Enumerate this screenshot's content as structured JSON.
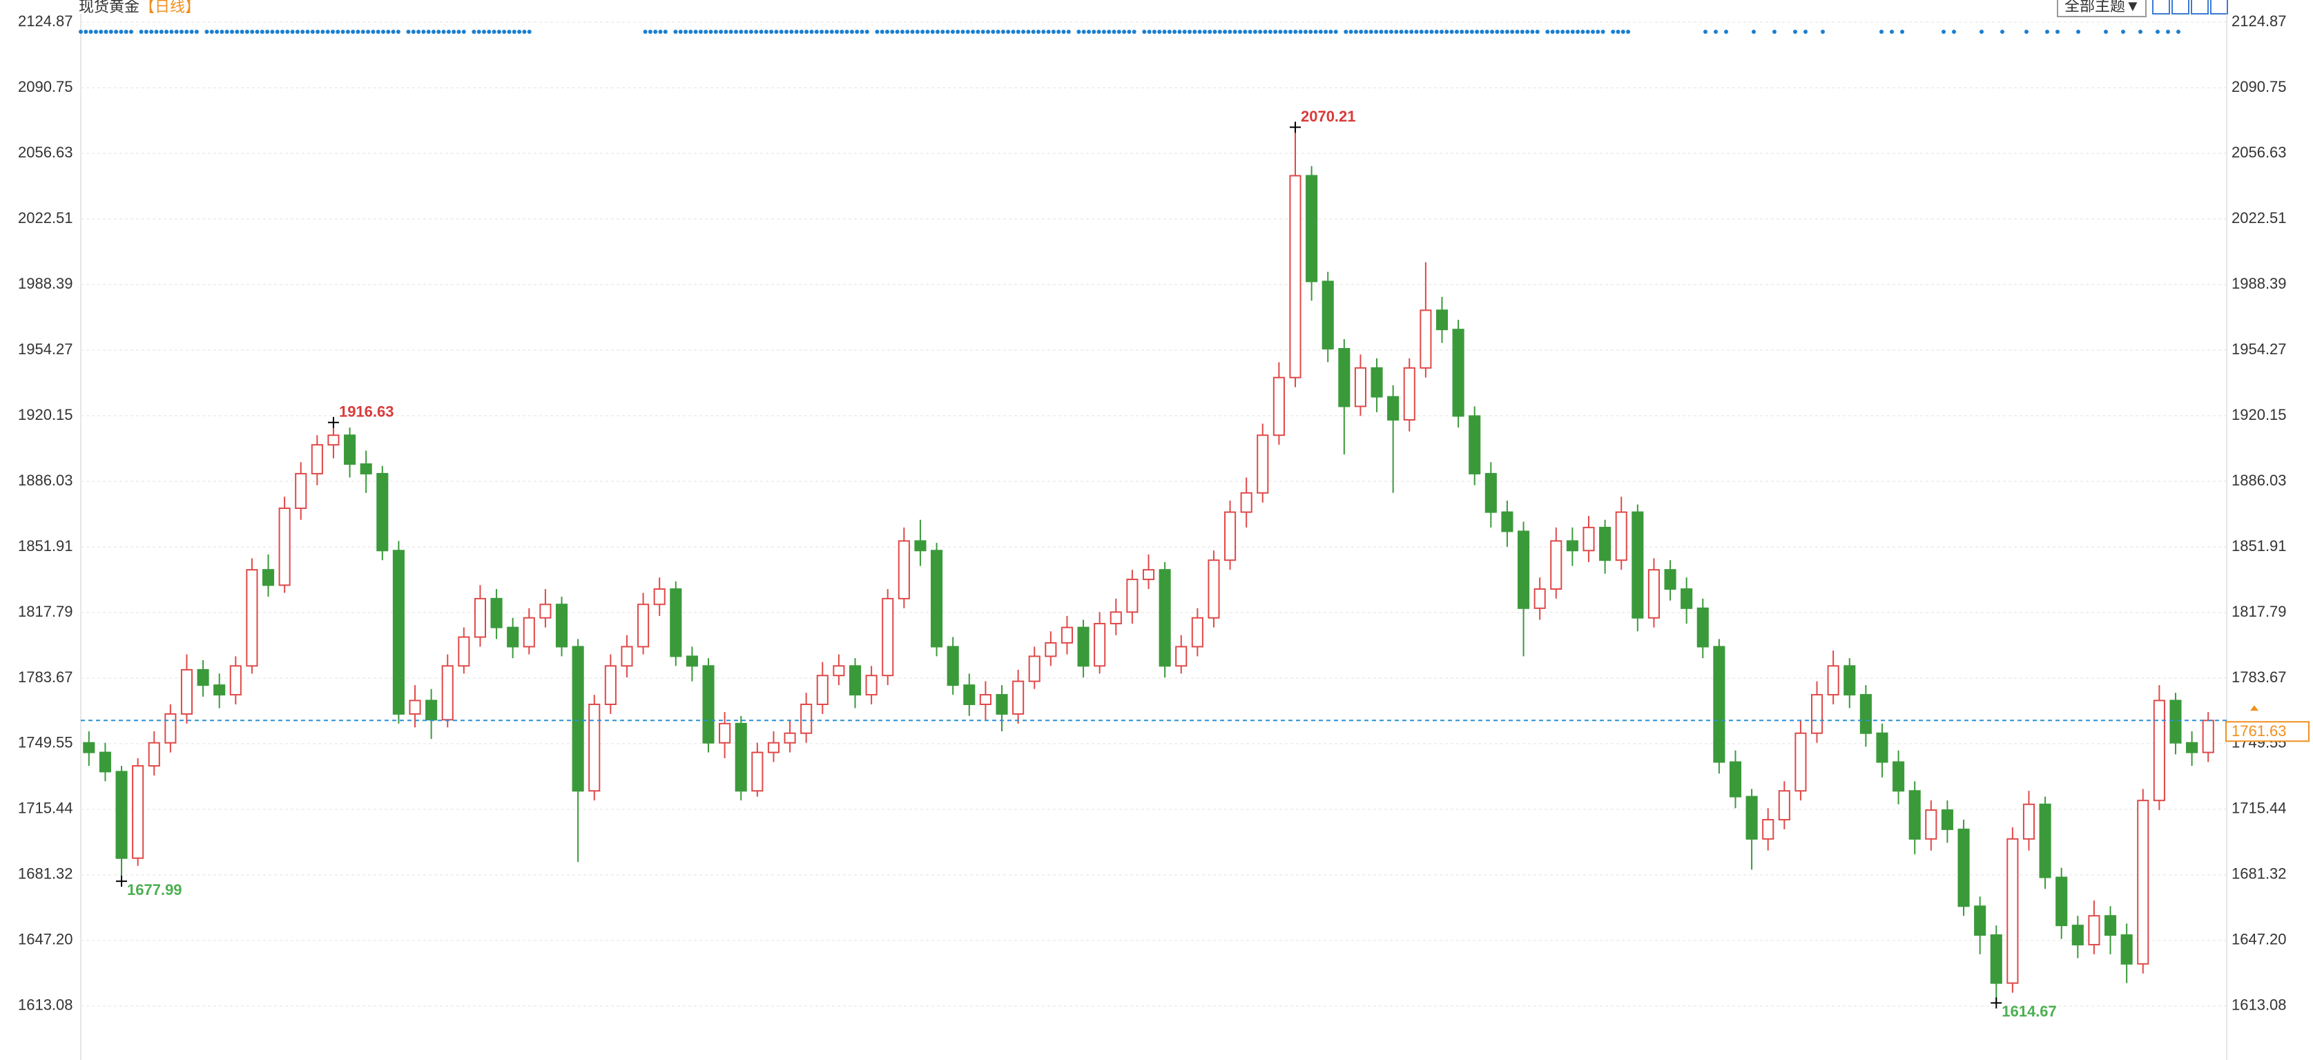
{
  "chart_data": {
    "type": "candlestick",
    "title": "现货黄金",
    "subtitle": "【日线】",
    "menu": "全部主题▼",
    "up_color": "#e04848",
    "down_color": "#3a9a3a",
    "grid": true,
    "ylim": [
      1585,
      2136.4
    ],
    "yticks": [
      1613.08,
      1647.2,
      1681.32,
      1715.44,
      1749.55,
      1783.67,
      1817.79,
      1851.91,
      1886.03,
      1920.15,
      1954.27,
      1988.39,
      2022.51,
      2056.63,
      2090.75,
      2124.87
    ],
    "open": [
      1750,
      1745,
      1735,
      1690,
      1738,
      1750,
      1765,
      1788,
      1780,
      1775,
      1790,
      1840,
      1832,
      1872,
      1890,
      1905,
      1910,
      1895,
      1890,
      1850,
      1765,
      1772,
      1762,
      1790,
      1805,
      1825,
      1810,
      1800,
      1815,
      1822,
      1800,
      1725,
      1770,
      1790,
      1800,
      1822,
      1830,
      1795,
      1790,
      1750,
      1760,
      1725,
      1745,
      1750,
      1755,
      1770,
      1785,
      1790,
      1775,
      1785,
      1825,
      1855,
      1850,
      1800,
      1780,
      1770,
      1775,
      1765,
      1782,
      1795,
      1802,
      1810,
      1790,
      1812,
      1818,
      1835,
      1840,
      1790,
      1800,
      1815,
      1845,
      1870,
      1880,
      1910,
      1940,
      2045,
      1990,
      1955,
      1925,
      1945,
      1930,
      1918,
      1945,
      1975,
      1965,
      1920,
      1890,
      1870,
      1860,
      1820,
      1830,
      1855,
      1850,
      1862,
      1845,
      1870,
      1815,
      1840,
      1830,
      1820,
      1800,
      1740,
      1722,
      1700,
      1710,
      1725,
      1755,
      1775,
      1790,
      1775,
      1755,
      1740,
      1725,
      1700,
      1715,
      1705,
      1665,
      1650,
      1625,
      1700,
      1718,
      1680,
      1655,
      1645,
      1660,
      1650,
      1635,
      1720,
      1772,
      1750,
      1745
    ],
    "high": [
      1756,
      1750,
      1738,
      1742,
      1756,
      1770,
      1796,
      1793,
      1786,
      1795,
      1846,
      1848,
      1878,
      1896,
      1910,
      1916.63,
      1914,
      1902,
      1894,
      1855,
      1780,
      1778,
      1796,
      1810,
      1832,
      1830,
      1815,
      1820,
      1830,
      1826,
      1804,
      1775,
      1796,
      1806,
      1828,
      1836,
      1834,
      1800,
      1794,
      1766,
      1764,
      1750,
      1756,
      1762,
      1776,
      1792,
      1796,
      1794,
      1790,
      1830,
      1862,
      1866,
      1854,
      1805,
      1786,
      1782,
      1780,
      1788,
      1800,
      1808,
      1816,
      1814,
      1818,
      1825,
      1840,
      1848,
      1844,
      1806,
      1820,
      1850,
      1876,
      1888,
      1916,
      1948,
      2070.21,
      2050,
      1995,
      1960,
      1952,
      1950,
      1936,
      1950,
      2000,
      1982,
      1970,
      1925,
      1896,
      1876,
      1865,
      1836,
      1862,
      1862,
      1868,
      1866,
      1878,
      1874,
      1846,
      1845,
      1836,
      1825,
      1804,
      1746,
      1726,
      1716,
      1730,
      1762,
      1782,
      1798,
      1794,
      1780,
      1760,
      1746,
      1730,
      1720,
      1720,
      1710,
      1670,
      1655,
      1706,
      1725,
      1722,
      1685,
      1660,
      1668,
      1665,
      1656,
      1726,
      1780,
      1776,
      1756,
      1766
    ],
    "low": [
      1738,
      1730,
      1677.99,
      1686,
      1733,
      1745,
      1760,
      1774,
      1768,
      1770,
      1786,
      1826,
      1828,
      1866,
      1884,
      1898,
      1888,
      1880,
      1845,
      1760,
      1758,
      1752,
      1758,
      1786,
      1800,
      1804,
      1794,
      1796,
      1810,
      1795,
      1688,
      1720,
      1765,
      1784,
      1796,
      1816,
      1790,
      1782,
      1745,
      1742,
      1720,
      1722,
      1740,
      1745,
      1750,
      1765,
      1780,
      1768,
      1770,
      1780,
      1820,
      1842,
      1795,
      1775,
      1764,
      1762,
      1756,
      1760,
      1778,
      1790,
      1796,
      1784,
      1786,
      1806,
      1812,
      1830,
      1784,
      1786,
      1795,
      1810,
      1840,
      1862,
      1875,
      1905,
      1935,
      1980,
      1948,
      1900,
      1920,
      1922,
      1880,
      1912,
      1940,
      1958,
      1914,
      1884,
      1862,
      1852,
      1795,
      1814,
      1825,
      1842,
      1844,
      1838,
      1840,
      1808,
      1810,
      1824,
      1812,
      1794,
      1734,
      1716,
      1684,
      1694,
      1705,
      1720,
      1750,
      1770,
      1768,
      1748,
      1732,
      1718,
      1692,
      1694,
      1698,
      1660,
      1640,
      1614.67,
      1620,
      1694,
      1674,
      1648,
      1638,
      1640,
      1640,
      1625,
      1630,
      1715,
      1744,
      1738,
      1740
    ],
    "close": [
      1745,
      1735,
      1690,
      1738,
      1750,
      1765,
      1788,
      1780,
      1775,
      1790,
      1840,
      1832,
      1872,
      1890,
      1905,
      1910,
      1895,
      1890,
      1850,
      1765,
      1772,
      1762,
      1790,
      1805,
      1825,
      1810,
      1800,
      1815,
      1822,
      1800,
      1725,
      1770,
      1790,
      1800,
      1822,
      1830,
      1795,
      1790,
      1750,
      1760,
      1725,
      1745,
      1750,
      1755,
      1770,
      1785,
      1790,
      1775,
      1785,
      1825,
      1855,
      1850,
      1800,
      1780,
      1770,
      1775,
      1765,
      1782,
      1795,
      1802,
      1810,
      1790,
      1812,
      1818,
      1835,
      1840,
      1790,
      1800,
      1815,
      1845,
      1870,
      1880,
      1910,
      1940,
      2045,
      1990,
      1955,
      1925,
      1945,
      1930,
      1918,
      1945,
      1975,
      1965,
      1920,
      1890,
      1870,
      1860,
      1820,
      1830,
      1855,
      1850,
      1862,
      1845,
      1870,
      1815,
      1840,
      1830,
      1820,
      1800,
      1740,
      1722,
      1700,
      1710,
      1725,
      1755,
      1775,
      1790,
      1775,
      1755,
      1740,
      1725,
      1700,
      1715,
      1705,
      1665,
      1650,
      1625,
      1700,
      1718,
      1680,
      1655,
      1645,
      1660,
      1650,
      1635,
      1720,
      1772,
      1750,
      1745,
      1761.63
    ],
    "high_marks": [
      1916.63,
      2070.21
    ],
    "low_marks": [
      1677.99,
      1614.67
    ],
    "last_price": 1761.63
  }
}
